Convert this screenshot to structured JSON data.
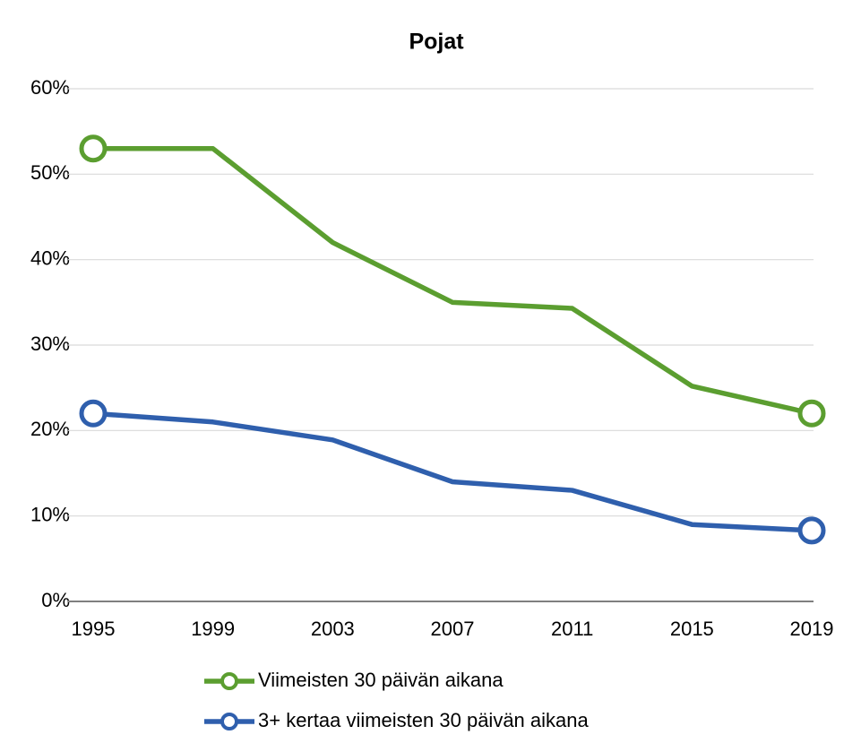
{
  "chart_data": {
    "type": "line",
    "title": "Pojat",
    "categories": [
      "1995",
      "1999",
      "2003",
      "2007",
      "2011",
      "2015",
      "2019"
    ],
    "series": [
      {
        "name": "Viimeisten 30 päivän aikana",
        "color": "#5b9e30",
        "values": [
          53,
          53,
          42,
          35,
          34.3,
          25.2,
          22
        ]
      },
      {
        "name": "3+ kertaa viimeisten 30 päivän aikana",
        "color": "#2f5fad",
        "values": [
          22,
          21,
          18.9,
          14,
          13,
          9,
          8.3
        ]
      }
    ],
    "ylim": [
      0,
      60
    ],
    "yticks": [
      {
        "value": 0,
        "label": "0%"
      },
      {
        "value": 10,
        "label": "10%"
      },
      {
        "value": 20,
        "label": "20%"
      },
      {
        "value": 30,
        "label": "30%"
      },
      {
        "value": 40,
        "label": "40%"
      },
      {
        "value": 50,
        "label": "50%"
      },
      {
        "value": 60,
        "label": "60%"
      }
    ],
    "grid": true,
    "legend": "bottom"
  }
}
